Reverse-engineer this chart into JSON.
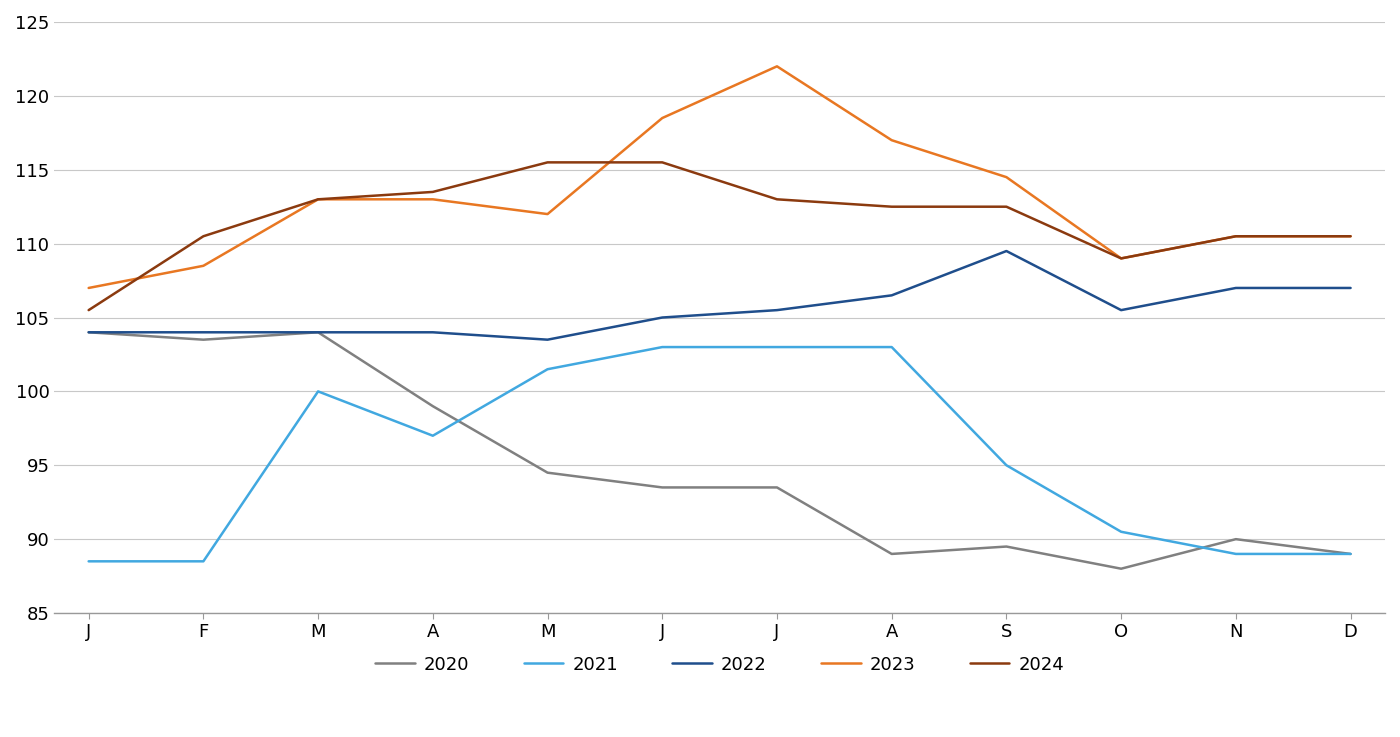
{
  "months": [
    "J",
    "F",
    "M",
    "A",
    "M",
    "J",
    "J",
    "A",
    "S",
    "O",
    "N",
    "D"
  ],
  "series": {
    "2020": [
      104.0,
      103.5,
      104.0,
      99.0,
      94.5,
      93.5,
      93.5,
      89.0,
      89.5,
      88.0,
      90.0,
      89.0
    ],
    "2021": [
      88.5,
      88.5,
      100.0,
      97.0,
      101.5,
      103.0,
      103.0,
      103.0,
      95.0,
      90.5,
      89.0,
      89.0
    ],
    "2022": [
      104.0,
      104.0,
      104.0,
      104.0,
      103.5,
      105.0,
      105.5,
      106.5,
      109.5,
      105.5,
      107.0,
      107.0
    ],
    "2023": [
      107.0,
      108.5,
      113.0,
      113.0,
      112.0,
      118.5,
      122.0,
      117.0,
      114.5,
      109.0,
      110.5,
      110.5
    ],
    "2024": [
      105.5,
      110.5,
      113.0,
      113.5,
      115.5,
      115.5,
      113.0,
      112.5,
      112.5,
      109.0,
      110.5,
      110.5
    ]
  },
  "colors": {
    "2020": "#808080",
    "2021": "#41a8e0",
    "2022": "#1f4e8c",
    "2023": "#e87722",
    "2024": "#8b3a0f"
  },
  "ylim": [
    85,
    125
  ],
  "yticks": [
    85,
    90,
    95,
    100,
    105,
    110,
    115,
    120,
    125
  ],
  "background_color": "#ffffff",
  "grid_color": "#c8c8c8",
  "linewidth": 1.8,
  "legend_order": [
    "2020",
    "2021",
    "2022",
    "2023",
    "2024"
  ]
}
